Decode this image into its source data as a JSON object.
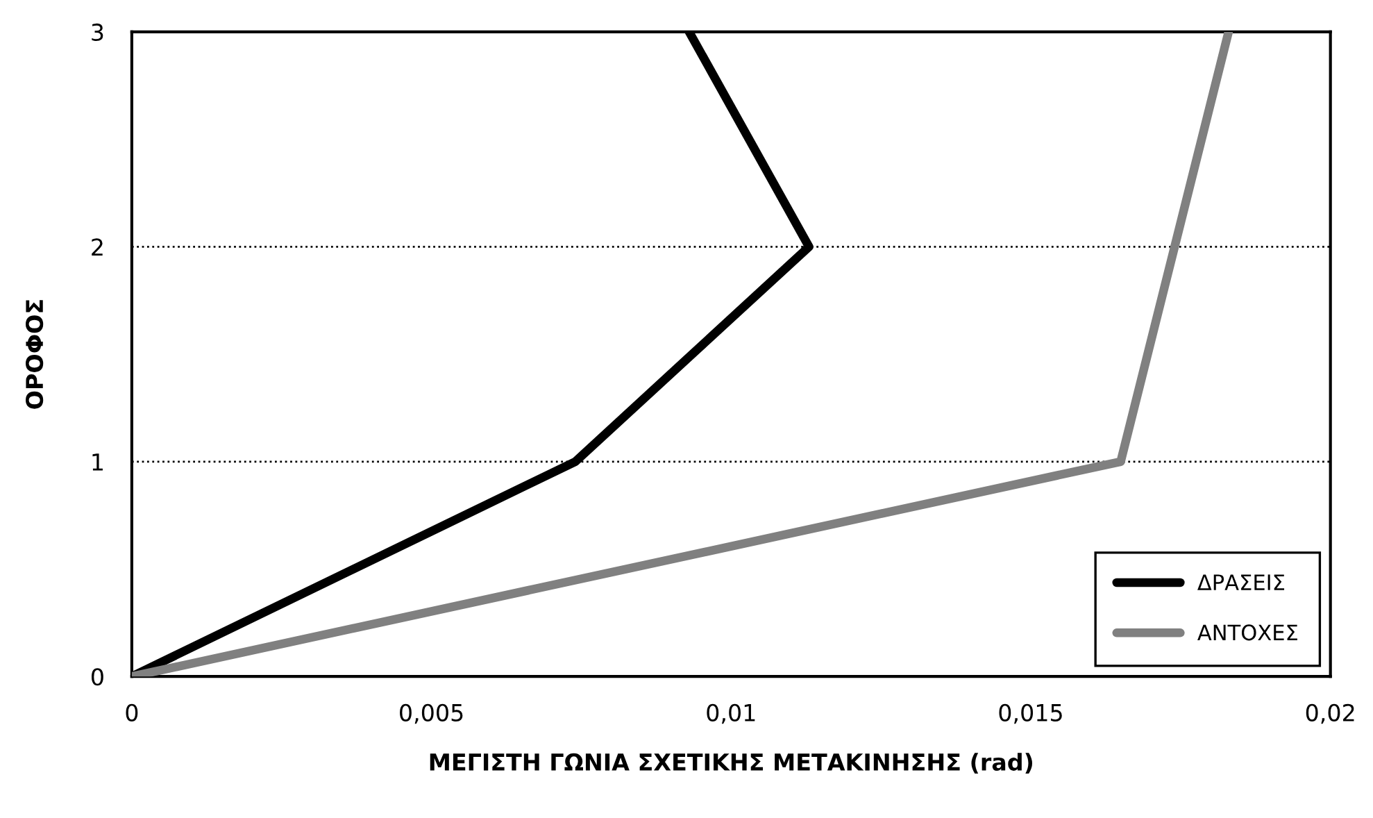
{
  "chart_data": {
    "type": "line",
    "xlabel": "ΜΕΓΙΣΤΗ ΓΩΝΙΑ ΣΧΕΤΙΚΗΣ ΜΕΤΑΚΙΝΗΣΗΣ (rad)",
    "ylabel": "ΟΡΟΦΟΣ",
    "series": [
      {
        "name": "ΔΡΑΣΕΙΣ",
        "color": "#000000",
        "x": [
          0,
          0.0074,
          0.0113,
          0.0093
        ],
        "values": [
          0,
          1,
          2,
          3
        ]
      },
      {
        "name": "ΑΝΤΟΧΕΣ",
        "color": "#808080",
        "x": [
          0,
          0.0165,
          0.0183
        ],
        "values": [
          0,
          1,
          3
        ]
      }
    ],
    "xlim": [
      0,
      0.02
    ],
    "xticks": [
      0,
      {
        "value": 0.005,
        "label": "0,005"
      },
      {
        "value": 0.01,
        "label": "0,01"
      },
      {
        "value": 0.015,
        "label": "0,015"
      },
      {
        "value": 0.02,
        "label": "0,02"
      }
    ],
    "ylim": [
      0,
      3
    ],
    "yticks": [
      0,
      1,
      2,
      3
    ],
    "grid": "y",
    "legend": "bottom right",
    "line_style": "solid",
    "marker": "none"
  }
}
